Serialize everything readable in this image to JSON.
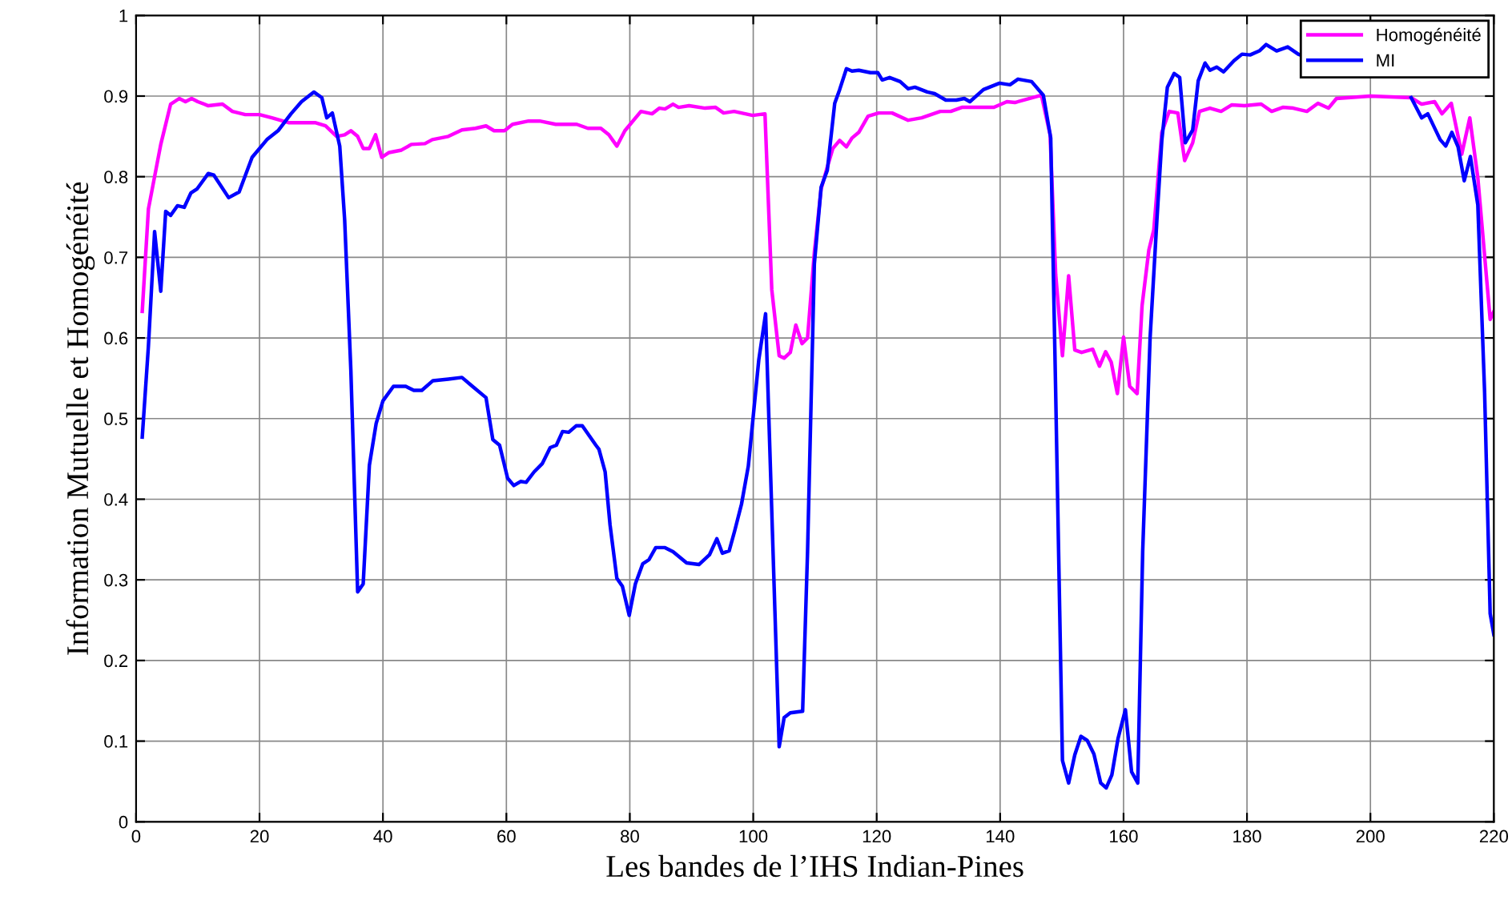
{
  "chart_data": {
    "type": "line",
    "xlabel": "Les bandes de l’IHS Indian-Pines",
    "ylabel": "Information Mutuelle et Homogénéité",
    "xlim": [
      0,
      220
    ],
    "xticks": [
      0,
      20,
      40,
      60,
      80,
      100,
      120,
      140,
      160,
      180,
      200,
      220
    ],
    "ylim": [
      0,
      1
    ],
    "yticks": [
      0,
      0.1,
      0.2,
      0.3,
      0.4,
      0.5,
      0.6,
      0.7,
      0.8,
      0.9,
      1
    ],
    "grid": true,
    "legend": "top right",
    "line_style": "solid",
    "marker": "none",
    "series": [
      {
        "name": "Homogénéité",
        "color": "#ff00ff",
        "x": [
          1,
          2,
          3,
          4,
          5.6,
          7,
          8,
          9,
          10,
          11.7,
          14,
          15.6,
          17.7,
          20,
          22,
          24.7,
          29,
          30.7,
          32.5,
          33.8,
          34.8,
          35.9,
          36.8,
          37.8,
          38.8,
          39.8,
          41,
          43,
          44.6,
          46.8,
          48,
          50.6,
          52.8,
          55,
          56.7,
          58,
          59.7,
          61,
          63.6,
          65.4,
          68,
          71.4,
          73.2,
          75.3,
          76.6,
          77.9,
          79.2,
          81.8,
          83.6,
          84.8,
          85.7,
          87,
          87.9,
          89.6,
          92.2,
          93.9,
          95.2,
          96.9,
          99.9,
          101.9,
          103,
          104.2,
          105,
          106,
          106.9,
          107.9,
          108.8,
          109.9,
          111,
          112,
          112.9,
          114,
          115.1,
          116,
          117.1,
          118.6,
          120.3,
          122.5,
          125.1,
          127.3,
          130.3,
          132,
          133.8,
          139,
          141.1,
          142.4,
          146.7,
          148.1,
          149,
          150.1,
          151.1,
          152.1,
          153.2,
          155,
          156.1,
          157.1,
          158,
          159,
          160,
          161,
          162.2,
          163,
          164.1,
          164.9,
          166.2,
          167.4,
          168.8,
          169.9,
          171.2,
          172.3,
          174,
          175.8,
          177.5,
          179.6,
          182.3,
          184,
          185.8,
          187.5,
          189.7,
          191.5,
          193.2,
          194.5,
          200,
          206.6,
          208.3,
          210.4,
          211.6,
          213.1,
          214.8,
          216.1,
          217.4,
          219.4,
          220
        ],
        "values": [
          0.633,
          0.76,
          0.8,
          0.84,
          0.89,
          0.897,
          0.893,
          0.897,
          0.893,
          0.888,
          0.89,
          0.881,
          0.877,
          0.877,
          0.873,
          0.867,
          0.867,
          0.863,
          0.85,
          0.852,
          0.857,
          0.85,
          0.835,
          0.835,
          0.852,
          0.824,
          0.83,
          0.833,
          0.84,
          0.841,
          0.846,
          0.85,
          0.858,
          0.86,
          0.863,
          0.857,
          0.857,
          0.865,
          0.869,
          0.869,
          0.865,
          0.865,
          0.86,
          0.86,
          0.852,
          0.838,
          0.857,
          0.881,
          0.878,
          0.885,
          0.884,
          0.89,
          0.886,
          0.888,
          0.885,
          0.886,
          0.879,
          0.881,
          0.876,
          0.878,
          0.66,
          0.578,
          0.575,
          0.582,
          0.616,
          0.593,
          0.6,
          0.706,
          0.785,
          0.812,
          0.835,
          0.845,
          0.837,
          0.848,
          0.855,
          0.875,
          0.879,
          0.879,
          0.87,
          0.873,
          0.881,
          0.881,
          0.886,
          0.886,
          0.893,
          0.892,
          0.901,
          0.852,
          0.679,
          0.578,
          0.677,
          0.585,
          0.582,
          0.586,
          0.565,
          0.583,
          0.57,
          0.531,
          0.601,
          0.54,
          0.531,
          0.64,
          0.709,
          0.734,
          0.855,
          0.881,
          0.879,
          0.82,
          0.842,
          0.881,
          0.885,
          0.881,
          0.889,
          0.888,
          0.89,
          0.881,
          0.886,
          0.885,
          0.881,
          0.891,
          0.885,
          0.897,
          0.9,
          0.898,
          0.89,
          0.893,
          0.878,
          0.891,
          0.828,
          0.873,
          0.799,
          0.623,
          0.633
        ]
      },
      {
        "name": "MI",
        "color": "#0000ff",
        "x": [
          1,
          2,
          3,
          4,
          4.8,
          5.6,
          6.7,
          7.8,
          8.9,
          9.9,
          11.7,
          12.6,
          15,
          16.7,
          18.8,
          21.2,
          23,
          25.1,
          26.8,
          28.8,
          30.1,
          30.9,
          31.8,
          33,
          33.8,
          34.8,
          35.9,
          36.8,
          37.8,
          38.9,
          40,
          41.7,
          43.7,
          45,
          46.3,
          48.1,
          50.6,
          52.8,
          54.5,
          56.7,
          57.8,
          58.9,
          60.2,
          61.2,
          62.3,
          63.2,
          64.5,
          65.8,
          67.1,
          68.1,
          69.1,
          70.1,
          71.3,
          72.3,
          74.5,
          75,
          76,
          76.8,
          77.9,
          78.8,
          79.9,
          80.9,
          82.1,
          83.1,
          84.2,
          85.7,
          87,
          89.2,
          91.2,
          92.9,
          94.1,
          95,
          96.1,
          97,
          98.1,
          99.2,
          100.9,
          102,
          103.1,
          104.2,
          105,
          106,
          108,
          108.8,
          109.9,
          111,
          112,
          113.2,
          114,
          115.1,
          116,
          117.1,
          119,
          120.2,
          120.9,
          122.1,
          123.8,
          125.1,
          126.2,
          128.2,
          129.4,
          131.2,
          132.9,
          134.2,
          135.1,
          137.3,
          139.9,
          141.6,
          142.9,
          145.1,
          147,
          148.2,
          149,
          150.1,
          151.1,
          152.1,
          153.1,
          154.1,
          155.2,
          156.3,
          157.2,
          158.1,
          159.1,
          160.3,
          161.3,
          162.3,
          163.1,
          164.3,
          165.4,
          166.2,
          167.1,
          168.2,
          169.1,
          170,
          171.2,
          172.1,
          173.2,
          174,
          175.1,
          176.2,
          177.9,
          179.2,
          180.5,
          182,
          183.1,
          184.8,
          186.6,
          188.3,
          190,
          199,
          206.6,
          208.3,
          209.3,
          211.3,
          212.2,
          213.2,
          214.2,
          215.2,
          216.2,
          217.4,
          218.5,
          219.4,
          220
        ],
        "values": [
          0.477,
          0.59,
          0.732,
          0.658,
          0.757,
          0.752,
          0.764,
          0.762,
          0.78,
          0.785,
          0.804,
          0.802,
          0.774,
          0.781,
          0.824,
          0.846,
          0.857,
          0.878,
          0.893,
          0.905,
          0.898,
          0.873,
          0.879,
          0.838,
          0.746,
          0.56,
          0.285,
          0.295,
          0.442,
          0.494,
          0.522,
          0.54,
          0.54,
          0.535,
          0.535,
          0.547,
          0.549,
          0.551,
          0.54,
          0.526,
          0.474,
          0.467,
          0.426,
          0.417,
          0.422,
          0.421,
          0.434,
          0.444,
          0.464,
          0.467,
          0.484,
          0.483,
          0.491,
          0.491,
          0.467,
          0.462,
          0.434,
          0.368,
          0.302,
          0.292,
          0.256,
          0.295,
          0.32,
          0.325,
          0.34,
          0.34,
          0.335,
          0.321,
          0.319,
          0.331,
          0.351,
          0.333,
          0.336,
          0.361,
          0.394,
          0.441,
          0.573,
          0.63,
          0.361,
          0.093,
          0.129,
          0.135,
          0.137,
          0.335,
          0.692,
          0.787,
          0.808,
          0.891,
          0.908,
          0.934,
          0.931,
          0.932,
          0.929,
          0.929,
          0.92,
          0.923,
          0.918,
          0.909,
          0.911,
          0.905,
          0.903,
          0.895,
          0.895,
          0.897,
          0.893,
          0.908,
          0.916,
          0.914,
          0.921,
          0.918,
          0.901,
          0.848,
          0.533,
          0.076,
          0.048,
          0.083,
          0.106,
          0.101,
          0.084,
          0.048,
          0.042,
          0.058,
          0.103,
          0.139,
          0.062,
          0.048,
          0.335,
          0.6,
          0.746,
          0.845,
          0.911,
          0.928,
          0.923,
          0.842,
          0.858,
          0.919,
          0.941,
          0.932,
          0.936,
          0.93,
          0.944,
          0.952,
          0.951,
          0.956,
          0.964,
          0.956,
          0.961,
          0.952,
          0.947,
          null,
          0.898,
          0.873,
          0.878,
          0.846,
          0.838,
          0.855,
          0.837,
          0.795,
          0.825,
          0.765,
          0.533,
          0.258,
          0.232
        ]
      }
    ]
  }
}
